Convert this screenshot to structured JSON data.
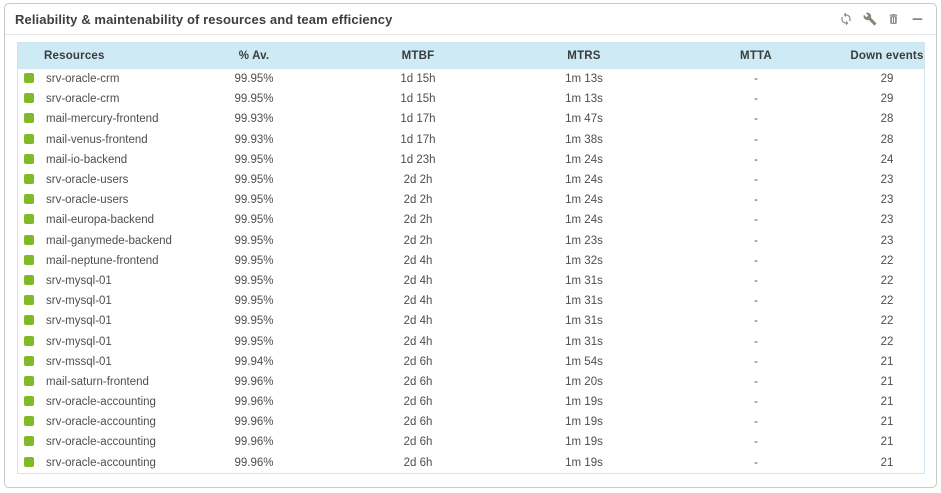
{
  "widget": {
    "title": "Reliability & maintenability of resources and team efficiency",
    "toolbar": {
      "refresh_label": "refresh",
      "configure_label": "configure",
      "delete_label": "delete",
      "collapse_label": "collapse"
    }
  },
  "colors": {
    "status_ok": "#80ba27",
    "header_bg": "#cdeaf5",
    "icon_gray": "#8b857d"
  },
  "table": {
    "columns": {
      "resources": "Resources",
      "availability": "% Av.",
      "mtbf": "MTBF",
      "mtrs": "MTRS",
      "mtta": "MTTA",
      "down_events": "Down events"
    },
    "rows": [
      {
        "status": "ok",
        "resource": "srv-oracle-crm",
        "availability": "99.95%",
        "mtbf": "1d 15h",
        "mtrs": "1m 13s",
        "mtta": "-",
        "down_events": "29"
      },
      {
        "status": "ok",
        "resource": "srv-oracle-crm",
        "availability": "99.95%",
        "mtbf": "1d 15h",
        "mtrs": "1m 13s",
        "mtta": "-",
        "down_events": "29"
      },
      {
        "status": "ok",
        "resource": "mail-mercury-frontend",
        "availability": "99.93%",
        "mtbf": "1d 17h",
        "mtrs": "1m 47s",
        "mtta": "-",
        "down_events": "28"
      },
      {
        "status": "ok",
        "resource": "mail-venus-frontend",
        "availability": "99.93%",
        "mtbf": "1d 17h",
        "mtrs": "1m 38s",
        "mtta": "-",
        "down_events": "28"
      },
      {
        "status": "ok",
        "resource": "mail-io-backend",
        "availability": "99.95%",
        "mtbf": "1d 23h",
        "mtrs": "1m 24s",
        "mtta": "-",
        "down_events": "24"
      },
      {
        "status": "ok",
        "resource": "srv-oracle-users",
        "availability": "99.95%",
        "mtbf": "2d 2h",
        "mtrs": "1m 24s",
        "mtta": "-",
        "down_events": "23"
      },
      {
        "status": "ok",
        "resource": "srv-oracle-users",
        "availability": "99.95%",
        "mtbf": "2d 2h",
        "mtrs": "1m 24s",
        "mtta": "-",
        "down_events": "23"
      },
      {
        "status": "ok",
        "resource": "mail-europa-backend",
        "availability": "99.95%",
        "mtbf": "2d 2h",
        "mtrs": "1m 24s",
        "mtta": "-",
        "down_events": "23"
      },
      {
        "status": "ok",
        "resource": "mail-ganymede-backend",
        "availability": "99.95%",
        "mtbf": "2d 2h",
        "mtrs": "1m 23s",
        "mtta": "-",
        "down_events": "23"
      },
      {
        "status": "ok",
        "resource": "mail-neptune-frontend",
        "availability": "99.95%",
        "mtbf": "2d 4h",
        "mtrs": "1m 32s",
        "mtta": "-",
        "down_events": "22"
      },
      {
        "status": "ok",
        "resource": "srv-mysql-01",
        "availability": "99.95%",
        "mtbf": "2d 4h",
        "mtrs": "1m 31s",
        "mtta": "-",
        "down_events": "22"
      },
      {
        "status": "ok",
        "resource": "srv-mysql-01",
        "availability": "99.95%",
        "mtbf": "2d 4h",
        "mtrs": "1m 31s",
        "mtta": "-",
        "down_events": "22"
      },
      {
        "status": "ok",
        "resource": "srv-mysql-01",
        "availability": "99.95%",
        "mtbf": "2d 4h",
        "mtrs": "1m 31s",
        "mtta": "-",
        "down_events": "22"
      },
      {
        "status": "ok",
        "resource": "srv-mysql-01",
        "availability": "99.95%",
        "mtbf": "2d 4h",
        "mtrs": "1m 31s",
        "mtta": "-",
        "down_events": "22"
      },
      {
        "status": "ok",
        "resource": "srv-mssql-01",
        "availability": "99.94%",
        "mtbf": "2d 6h",
        "mtrs": "1m 54s",
        "mtta": "-",
        "down_events": "21"
      },
      {
        "status": "ok",
        "resource": "mail-saturn-frontend",
        "availability": "99.96%",
        "mtbf": "2d 6h",
        "mtrs": "1m 20s",
        "mtta": "-",
        "down_events": "21"
      },
      {
        "status": "ok",
        "resource": "srv-oracle-accounting",
        "availability": "99.96%",
        "mtbf": "2d 6h",
        "mtrs": "1m 19s",
        "mtta": "-",
        "down_events": "21"
      },
      {
        "status": "ok",
        "resource": "srv-oracle-accounting",
        "availability": "99.96%",
        "mtbf": "2d 6h",
        "mtrs": "1m 19s",
        "mtta": "-",
        "down_events": "21"
      },
      {
        "status": "ok",
        "resource": "srv-oracle-accounting",
        "availability": "99.96%",
        "mtbf": "2d 6h",
        "mtrs": "1m 19s",
        "mtta": "-",
        "down_events": "21"
      },
      {
        "status": "ok",
        "resource": "srv-oracle-accounting",
        "availability": "99.96%",
        "mtbf": "2d 6h",
        "mtrs": "1m 19s",
        "mtta": "-",
        "down_events": "21"
      }
    ]
  }
}
